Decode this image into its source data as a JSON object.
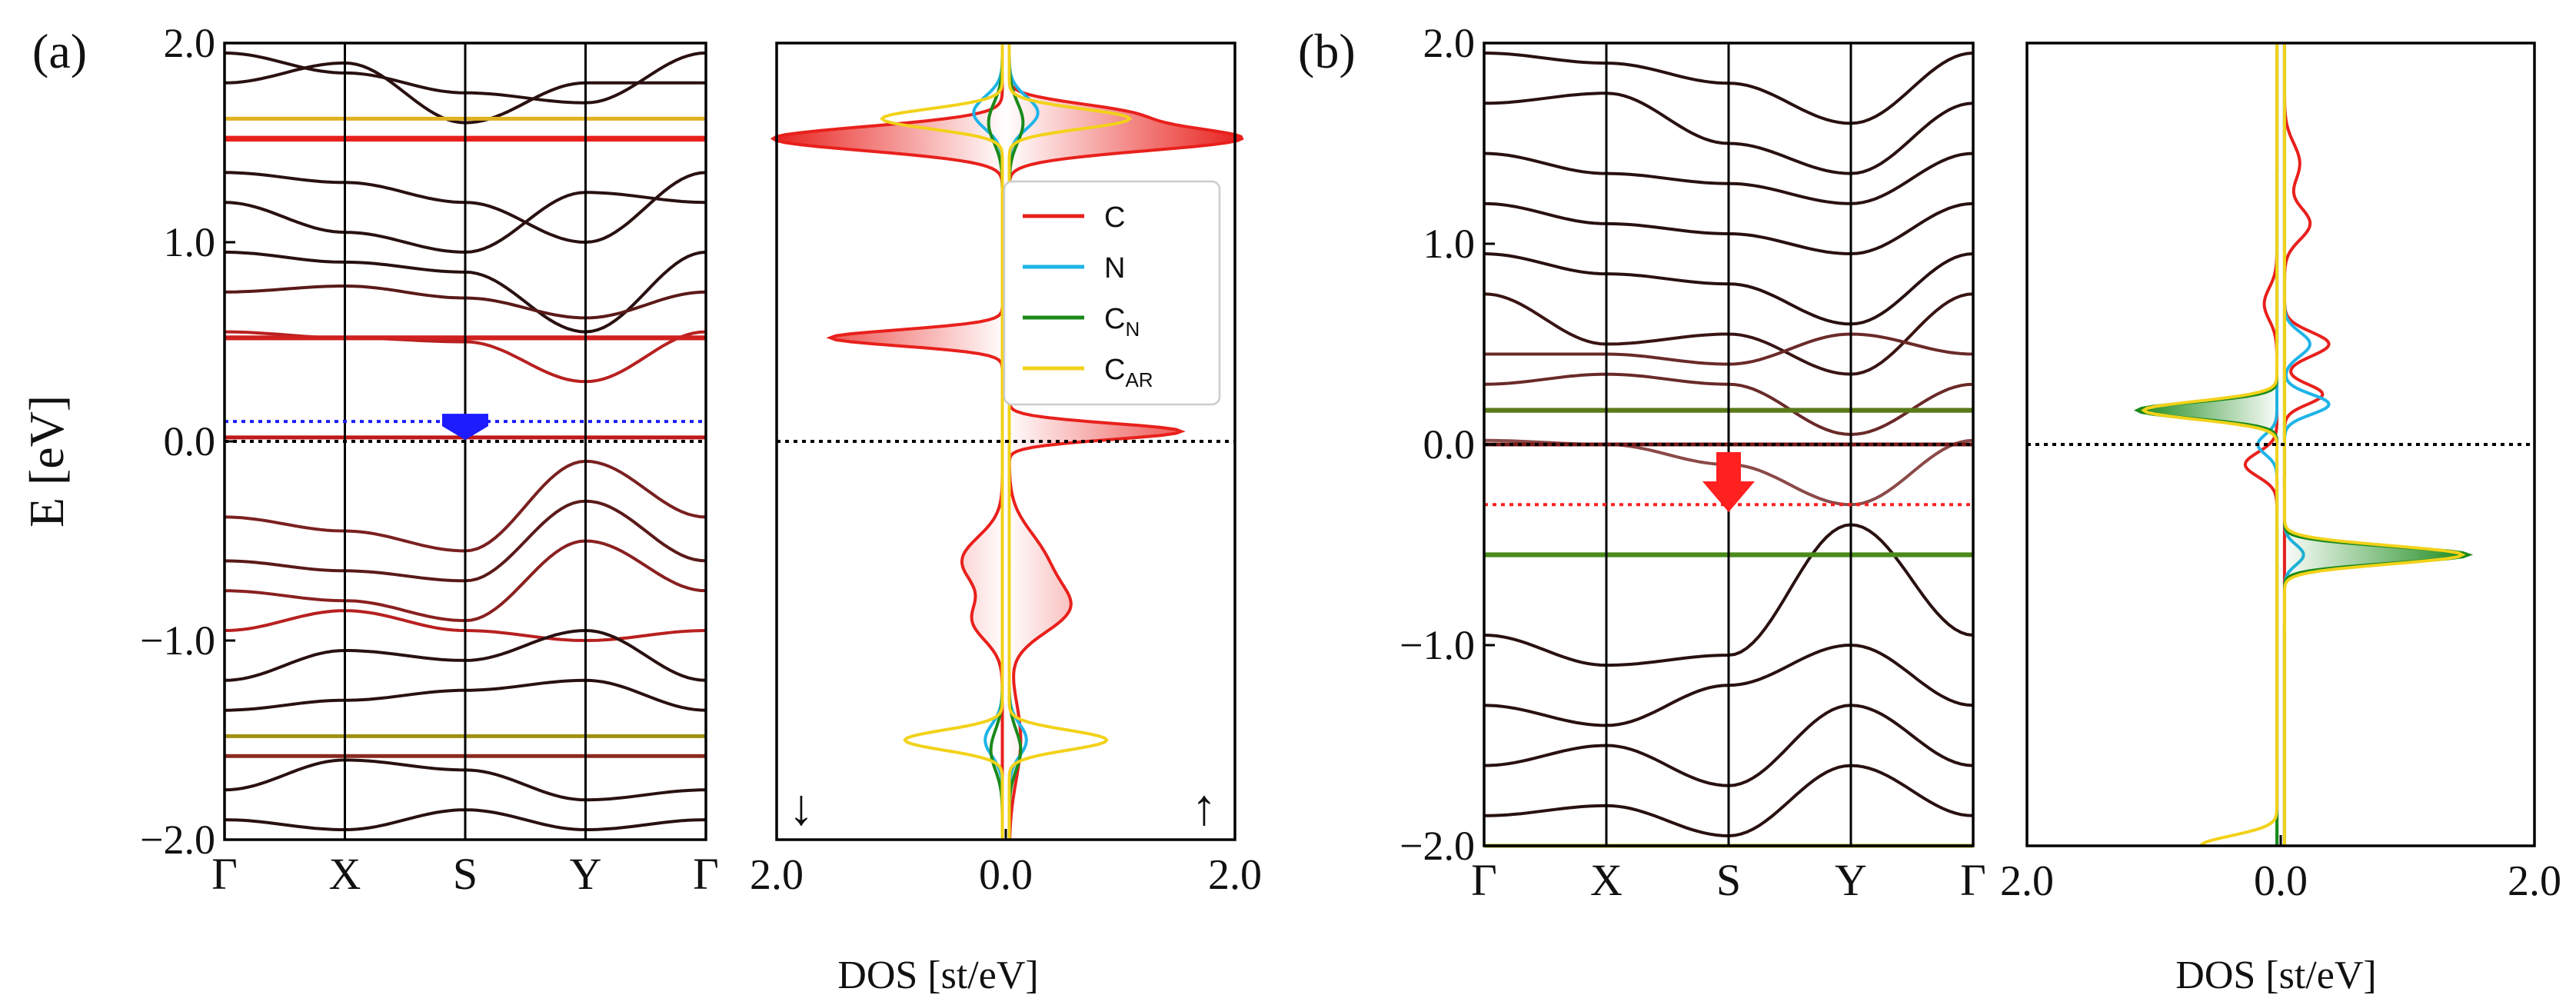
{
  "figure": {
    "panel_a_label": "(a)",
    "panel_b_label": "(b)",
    "ylabel": "E [eV]",
    "dos_xlabel": "DOS [st/eV]",
    "spin_down_arrow": "↓",
    "spin_up_arrow": "↑"
  },
  "chart_data": [
    {
      "id": "bands_a",
      "type": "line",
      "title": "",
      "ylabel": "E [eV]",
      "ylim": [
        -2.0,
        2.0
      ],
      "yticks": [
        -2.0,
        -1.0,
        0.0,
        1.0,
        2.0
      ],
      "ytick_labels": [
        "−2.0",
        "−1.0",
        "0.0",
        "1.0",
        "2.0"
      ],
      "kpath": [
        "Γ",
        "X",
        "S",
        "Y",
        "Γ"
      ],
      "fermi_level": 0.0,
      "fermi_line_color": "#000000",
      "marker_line_energy": 0.1,
      "marker_line_color": "#1c1cff",
      "flat_bands": [
        {
          "energy": 1.52,
          "color": "#e8201c",
          "weight": 3
        },
        {
          "energy": 1.62,
          "color": "#e0b020",
          "weight": 2
        },
        {
          "energy": 0.52,
          "color": "#d02020",
          "weight": 2.5
        },
        {
          "energy": 0.02,
          "color": "#c01818",
          "weight": 2
        },
        {
          "energy": -1.48,
          "color": "#a09010",
          "weight": 2
        },
        {
          "energy": -1.58,
          "color": "#8a2a20",
          "weight": 2
        }
      ],
      "dispersive_bands": [
        {
          "nodes": [
            1.95,
            1.85,
            1.75,
            1.7,
            1.95
          ],
          "color": "#2a1010"
        },
        {
          "nodes": [
            1.8,
            1.9,
            1.6,
            1.8,
            1.8
          ],
          "color": "#2a1010"
        },
        {
          "nodes": [
            1.35,
            1.3,
            1.2,
            1.0,
            1.35
          ],
          "color": "#2a1010"
        },
        {
          "nodes": [
            1.2,
            1.05,
            0.95,
            1.25,
            1.2
          ],
          "color": "#2a1010"
        },
        {
          "nodes": [
            0.95,
            0.9,
            0.85,
            0.55,
            0.95
          ],
          "color": "#2a1010"
        },
        {
          "nodes": [
            0.75,
            0.78,
            0.72,
            0.62,
            0.75
          ],
          "color": "#5a1a18"
        },
        {
          "nodes": [
            0.55,
            0.52,
            0.5,
            0.3,
            0.55
          ],
          "color": "#b82020"
        },
        {
          "nodes": [
            -0.38,
            -0.45,
            -0.55,
            -0.1,
            -0.38
          ],
          "color": "#7a2020"
        },
        {
          "nodes": [
            -0.6,
            -0.65,
            -0.7,
            -0.3,
            -0.6
          ],
          "color": "#5a1a18"
        },
        {
          "nodes": [
            -0.75,
            -0.8,
            -0.9,
            -0.5,
            -0.75
          ],
          "color": "#8a2020"
        },
        {
          "nodes": [
            -0.95,
            -0.85,
            -0.95,
            -1.0,
            -0.95
          ],
          "color": "#b82020"
        },
        {
          "nodes": [
            -1.2,
            -1.05,
            -1.1,
            -0.95,
            -1.2
          ],
          "color": "#2a1010"
        },
        {
          "nodes": [
            -1.35,
            -1.3,
            -1.25,
            -1.2,
            -1.35
          ],
          "color": "#2a1010"
        },
        {
          "nodes": [
            -1.75,
            -1.6,
            -1.65,
            -1.8,
            -1.75
          ],
          "color": "#2a1010"
        },
        {
          "nodes": [
            -1.9,
            -1.95,
            -1.85,
            -1.95,
            -1.9
          ],
          "color": "#2a1010"
        }
      ]
    },
    {
      "id": "dos_a",
      "type": "area",
      "title": "",
      "xlabel": "DOS [st/eV]",
      "xlim": [
        -2.0,
        2.0
      ],
      "ylim": [
        -2.0,
        2.0
      ],
      "xtick_labels": [
        "2.0",
        "0.0",
        "2.0"
      ],
      "xtick_values": [
        -2.0,
        0.0,
        2.0
      ],
      "fermi_level": 0.0,
      "legend_position": "upper-right",
      "series": [
        {
          "name": "C",
          "sub": "",
          "color": "#e8201c",
          "fill": true,
          "peaks": [
            [
              1.52,
              2.0,
              0.06,
              1
            ],
            [
              1.52,
              -2.0,
              0.06,
              1
            ],
            [
              0.52,
              -1.5,
              0.04,
              -1
            ],
            [
              0.05,
              1.5,
              0.04,
              1
            ],
            [
              -0.6,
              0.3,
              0.15,
              1
            ],
            [
              -0.85,
              0.45,
              0.12,
              1
            ],
            [
              -0.6,
              -0.35,
              0.12,
              -1
            ],
            [
              -0.9,
              -0.25,
              0.1,
              -1
            ],
            [
              -1.5,
              0.1,
              0.2,
              1
            ],
            [
              1.65,
              0.9,
              0.05,
              1
            ]
          ]
        },
        {
          "name": "N",
          "sub": "",
          "color": "#1eb4e8",
          "fill": false,
          "peaks": [
            [
              1.65,
              0.25,
              0.08,
              1
            ],
            [
              1.65,
              -0.25,
              0.08,
              -1
            ],
            [
              -1.5,
              0.15,
              0.08,
              1
            ],
            [
              -1.5,
              -0.15,
              0.08,
              -1
            ]
          ]
        },
        {
          "name": "C",
          "sub": "N",
          "color": "#1a8a1a",
          "fill": false,
          "peaks": [
            [
              1.6,
              0.12,
              0.1,
              1
            ],
            [
              1.6,
              -0.12,
              0.1,
              -1
            ],
            [
              -1.55,
              0.1,
              0.1,
              1
            ],
            [
              -1.55,
              -0.1,
              0.1,
              -1
            ]
          ]
        },
        {
          "name": "C",
          "sub": "AR",
          "color": "#f2d21a",
          "fill": false,
          "peaks": [
            [
              1.62,
              1.05,
              0.05,
              1
            ],
            [
              1.62,
              -1.05,
              0.05,
              -1
            ],
            [
              -1.5,
              0.85,
              0.05,
              1
            ],
            [
              -1.5,
              -0.85,
              0.05,
              -1
            ]
          ]
        }
      ]
    },
    {
      "id": "bands_b",
      "type": "line",
      "title": "",
      "ylim": [
        -2.0,
        2.0
      ],
      "yticks": [
        -2.0,
        -1.0,
        0.0,
        1.0,
        2.0
      ],
      "ytick_labels": [
        "−2.0",
        "−1.0",
        "0.0",
        "1.0",
        "2.0"
      ],
      "kpath": [
        "Γ",
        "X",
        "S",
        "Y",
        "Γ"
      ],
      "fermi_level": 0.0,
      "fermi_line_color": "#000000",
      "shifted_level": -0.3,
      "shifted_level_color": "#ff2020",
      "flat_bands": [
        {
          "energy": 0.17,
          "color": "#5a7a1a",
          "weight": 2.5
        },
        {
          "energy": -0.55,
          "color": "#4a8a1a",
          "weight": 2.5
        },
        {
          "energy": 0.0,
          "color": "#7a1a1a",
          "weight": 2
        },
        {
          "energy": -2.0,
          "color": "#a0a010",
          "weight": 2
        }
      ],
      "dispersive_bands": [
        {
          "nodes": [
            1.95,
            1.9,
            1.8,
            1.6,
            1.95
          ],
          "color": "#2a1010"
        },
        {
          "nodes": [
            1.7,
            1.75,
            1.5,
            1.35,
            1.7
          ],
          "color": "#2a1010"
        },
        {
          "nodes": [
            1.45,
            1.35,
            1.3,
            1.2,
            1.45
          ],
          "color": "#2a1010"
        },
        {
          "nodes": [
            1.2,
            1.1,
            1.05,
            0.95,
            1.2
          ],
          "color": "#2a1010"
        },
        {
          "nodes": [
            0.95,
            0.85,
            0.8,
            0.6,
            0.95
          ],
          "color": "#2a1010"
        },
        {
          "nodes": [
            0.75,
            0.5,
            0.55,
            0.35,
            0.75
          ],
          "color": "#3a1414"
        },
        {
          "nodes": [
            0.45,
            0.45,
            0.4,
            0.55,
            0.45
          ],
          "color": "#6a2a28"
        },
        {
          "nodes": [
            0.3,
            0.35,
            0.3,
            0.05,
            0.3
          ],
          "color": "#6a2a28"
        },
        {
          "nodes": [
            0.02,
            0.0,
            -0.1,
            -0.3,
            0.02
          ],
          "color": "#8a4a48"
        },
        {
          "nodes": [
            -0.95,
            -1.1,
            -1.05,
            -0.4,
            -0.95
          ],
          "color": "#2a1010"
        },
        {
          "nodes": [
            -1.3,
            -1.4,
            -1.2,
            -1.0,
            -1.3
          ],
          "color": "#2a1010"
        },
        {
          "nodes": [
            -1.6,
            -1.5,
            -1.7,
            -1.3,
            -1.6
          ],
          "color": "#2a1010"
        },
        {
          "nodes": [
            -1.85,
            -1.8,
            -1.95,
            -1.6,
            -1.85
          ],
          "color": "#2a1010"
        }
      ]
    },
    {
      "id": "dos_b",
      "type": "area",
      "title": "",
      "xlabel": "DOS [st/eV]",
      "xlim": [
        -2.0,
        2.0
      ],
      "ylim": [
        -2.0,
        2.0
      ],
      "xtick_labels": [
        "2.0",
        "0.0",
        "2.0"
      ],
      "xtick_values": [
        -2.0,
        0.0,
        2.0
      ],
      "fermi_level": 0.0,
      "series": [
        {
          "name": "C",
          "sub": "",
          "color": "#e8201c",
          "fill": false,
          "peaks": [
            [
              1.1,
              0.2,
              0.08,
              1
            ],
            [
              0.5,
              0.35,
              0.06,
              1
            ],
            [
              0.25,
              0.3,
              0.05,
              1
            ],
            [
              -0.1,
              -0.25,
              0.06,
              -1
            ],
            [
              0.7,
              -0.1,
              0.08,
              -1
            ],
            [
              1.4,
              0.12,
              0.1,
              1
            ]
          ]
        },
        {
          "name": "N",
          "sub": "",
          "color": "#1eb4e8",
          "fill": false,
          "peaks": [
            [
              0.5,
              0.2,
              0.06,
              1
            ],
            [
              0.2,
              0.35,
              0.05,
              1
            ],
            [
              0.0,
              -0.15,
              0.05,
              -1
            ],
            [
              -0.55,
              0.15,
              0.05,
              1
            ]
          ]
        },
        {
          "name": "C",
          "sub": "N",
          "color": "#1a8a1a",
          "fill": true,
          "peaks": [
            [
              0.17,
              -1.1,
              0.04,
              -1
            ],
            [
              -0.55,
              1.45,
              0.04,
              1
            ]
          ]
        },
        {
          "name": "C",
          "sub": "AR",
          "color": "#f2d21a",
          "fill": false,
          "peaks": [
            [
              0.17,
              -1.05,
              0.045,
              -1
            ],
            [
              -0.55,
              1.4,
              0.045,
              1
            ],
            [
              -2.0,
              -0.6,
              0.05,
              -1
            ]
          ]
        }
      ]
    }
  ]
}
